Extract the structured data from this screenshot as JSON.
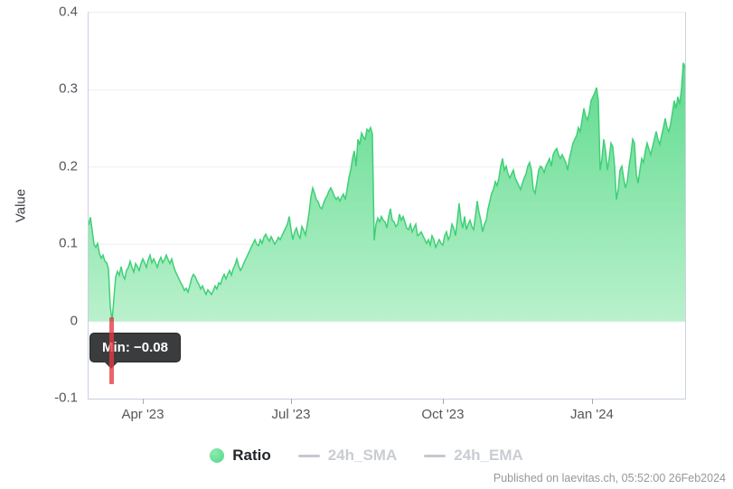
{
  "chart_data": {
    "type": "area",
    "title": "",
    "ylabel": "Value",
    "ylim": [
      -0.1,
      0.4
    ],
    "grid": true,
    "grid_color": "#ededed",
    "area_gradient_top": "#4bd680",
    "area_gradient_bottom": "#baf1cd",
    "line_color": "#3fd077",
    "y_ticks": [
      {
        "label": "0.4",
        "v": 0.4
      },
      {
        "label": "0.3",
        "v": 0.3
      },
      {
        "label": "0.2",
        "v": 0.2
      },
      {
        "label": "0.1",
        "v": 0.1
      },
      {
        "label": "0",
        "v": 0
      },
      {
        "label": "-0.1",
        "v": -0.1
      }
    ],
    "x_ticks": [
      {
        "label": "Apr '23",
        "t": 0.0924
      },
      {
        "label": "Jul '23",
        "t": 0.3409
      },
      {
        "label": "Oct '23",
        "t": 0.5954
      },
      {
        "label": "Jan '24",
        "t": 0.8454
      }
    ],
    "x_range_note": "26 Feb 2023 to 26 Feb 2024",
    "min_marker": {
      "t": 0.0394,
      "value": -0.08,
      "label": "Min: −0.08",
      "color": "#e43a40"
    },
    "series": [
      {
        "name": "Ratio",
        "type": "area",
        "values": [
          0.125,
          0.135,
          0.118,
          0.1,
          0.096,
          0.101,
          0.088,
          0.082,
          0.086,
          0.078,
          0.076,
          0.068,
          0.02,
          -0.08,
          0.03,
          0.058,
          0.065,
          0.06,
          0.071,
          0.06,
          0.055,
          0.066,
          0.07,
          0.078,
          0.07,
          0.064,
          0.075,
          0.071,
          0.066,
          0.075,
          0.081,
          0.076,
          0.07,
          0.08,
          0.086,
          0.076,
          0.081,
          0.076,
          0.07,
          0.078,
          0.083,
          0.076,
          0.08,
          0.086,
          0.08,
          0.075,
          0.081,
          0.072,
          0.065,
          0.06,
          0.055,
          0.05,
          0.046,
          0.04,
          0.043,
          0.038,
          0.046,
          0.056,
          0.061,
          0.058,
          0.052,
          0.048,
          0.042,
          0.046,
          0.04,
          0.035,
          0.041,
          0.038,
          0.035,
          0.04,
          0.046,
          0.042,
          0.05,
          0.048,
          0.056,
          0.061,
          0.055,
          0.061,
          0.066,
          0.06,
          0.068,
          0.073,
          0.081,
          0.072,
          0.066,
          0.07,
          0.076,
          0.081,
          0.086,
          0.091,
          0.096,
          0.101,
          0.106,
          0.1,
          0.098,
          0.106,
          0.101,
          0.109,
          0.113,
          0.108,
          0.104,
          0.11,
          0.105,
          0.1,
          0.104,
          0.109,
          0.106,
          0.111,
          0.116,
          0.121,
          0.126,
          0.136,
          0.119,
          0.106,
          0.116,
          0.121,
          0.112,
          0.108,
          0.123,
          0.118,
          0.112,
          0.126,
          0.141,
          0.161,
          0.173,
          0.166,
          0.158,
          0.155,
          0.148,
          0.146,
          0.153,
          0.159,
          0.163,
          0.169,
          0.173,
          0.168,
          0.162,
          0.158,
          0.161,
          0.156,
          0.161,
          0.165,
          0.158,
          0.171,
          0.186,
          0.196,
          0.211,
          0.221,
          0.201,
          0.236,
          0.229,
          0.244,
          0.239,
          0.236,
          0.249,
          0.246,
          0.251,
          0.243,
          0.105,
          0.126,
          0.134,
          0.129,
          0.136,
          0.131,
          0.129,
          0.121,
          0.136,
          0.146,
          0.131,
          0.129,
          0.123,
          0.126,
          0.139,
          0.131,
          0.136,
          0.129,
          0.121,
          0.119,
          0.126,
          0.116,
          0.121,
          0.126,
          0.111,
          0.113,
          0.116,
          0.111,
          0.106,
          0.101,
          0.106,
          0.099,
          0.111,
          0.106,
          0.096,
          0.101,
          0.106,
          0.101,
          0.099,
          0.111,
          0.116,
          0.106,
          0.111,
          0.126,
          0.121,
          0.111,
          0.131,
          0.153,
          0.131,
          0.121,
          0.136,
          0.119,
          0.126,
          0.131,
          0.123,
          0.119,
          0.136,
          0.156,
          0.141,
          0.131,
          0.116,
          0.126,
          0.131,
          0.146,
          0.156,
          0.166,
          0.171,
          0.181,
          0.176,
          0.186,
          0.201,
          0.211,
          0.196,
          0.201,
          0.191,
          0.186,
          0.191,
          0.196,
          0.186,
          0.181,
          0.176,
          0.171,
          0.179,
          0.186,
          0.191,
          0.201,
          0.206,
          0.196,
          0.171,
          0.166,
          0.181,
          0.196,
          0.201,
          0.199,
          0.193,
          0.201,
          0.206,
          0.211,
          0.201,
          0.216,
          0.221,
          0.224,
          0.216,
          0.211,
          0.216,
          0.211,
          0.206,
          0.196,
          0.211,
          0.221,
          0.231,
          0.236,
          0.241,
          0.251,
          0.246,
          0.261,
          0.276,
          0.266,
          0.261,
          0.271,
          0.286,
          0.291,
          0.296,
          0.303,
          0.286,
          0.196,
          0.211,
          0.236,
          0.221,
          0.196,
          0.211,
          0.231,
          0.226,
          0.201,
          0.158,
          0.171,
          0.196,
          0.201,
          0.186,
          0.173,
          0.181,
          0.201,
          0.216,
          0.236,
          0.231,
          0.191,
          0.179,
          0.196,
          0.211,
          0.206,
          0.221,
          0.231,
          0.223,
          0.216,
          0.226,
          0.236,
          0.246,
          0.236,
          0.229,
          0.241,
          0.251,
          0.263,
          0.251,
          0.246,
          0.256,
          0.271,
          0.286,
          0.276,
          0.291,
          0.281,
          0.301,
          0.335,
          0.329
        ]
      },
      {
        "name": "24h_SMA",
        "type": "line",
        "visible": false
      },
      {
        "name": "24h_EMA",
        "type": "line",
        "visible": false
      }
    ]
  },
  "legend": {
    "items": [
      {
        "label": "Ratio",
        "marker": "circle",
        "active": true,
        "marker_colors": [
          "#8ceab0",
          "#52d885"
        ],
        "label_color": "#222529"
      },
      {
        "label": "24h_SMA",
        "marker": "dash",
        "active": false,
        "marker_colors": [
          "#c5c9ce",
          "#c5c9ce"
        ],
        "label_color": "#c9cdd2"
      },
      {
        "label": "24h_EMA",
        "marker": "dash",
        "active": false,
        "marker_colors": [
          "#c5c9ce",
          "#c5c9ce"
        ],
        "label_color": "#c9cdd2"
      }
    ]
  },
  "footer": {
    "watermark": "Published on laevitas.ch, 05:52:00 26Feb2024"
  }
}
